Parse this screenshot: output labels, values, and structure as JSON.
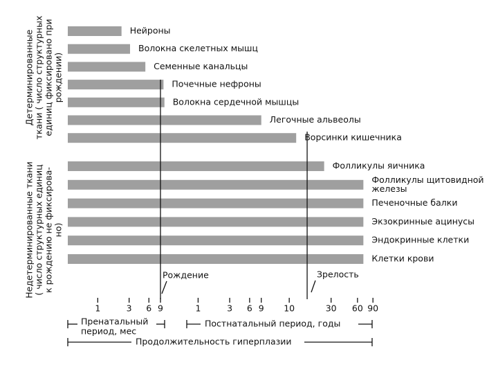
{
  "chart_data": {
    "type": "bar",
    "orientation": "horizontal",
    "log_x": true,
    "color": "#8e8e8e",
    "groups": [
      {
        "label": [
          "Детерминированные",
          "ткани ( число структурных",
          "единиц фиксировано при",
          "рождении)"
        ]
      },
      {
        "label": [
          "Недетерминированные ткани",
          "( число структурных единиц",
          "к рождению не фиксирова-",
          "но)"
        ]
      }
    ],
    "x_segments": [
      {
        "xlim": [
          0.35,
          9
        ],
        "xticks": [
          1,
          3,
          6,
          9
        ]
      },
      {
        "xlim": [
          0.27,
          9.5
        ],
        "xticks": [
          1,
          3,
          6,
          9
        ]
      },
      {
        "xlim": [
          5,
          100
        ],
        "xticks": [
          10,
          30,
          60,
          90
        ]
      }
    ],
    "bars": [
      {
        "label": [
          "Нейроны"
        ],
        "group": 0,
        "segment": 0,
        "value": 2.3
      },
      {
        "label": [
          "Волокна скелетных мышц"
        ],
        "group": 0,
        "segment": 0,
        "value": 3.1
      },
      {
        "label": [
          "Семенные канальцы"
        ],
        "group": 0,
        "segment": 0,
        "value": 5.3
      },
      {
        "label": [
          "Почечные нефроны"
        ],
        "group": 0,
        "segment": 1,
        "value": 0.3
      },
      {
        "label": [
          "Волокна сердечной мышцы"
        ],
        "group": 0,
        "segment": 1,
        "value": 0.31
      },
      {
        "label": [
          "Легочные альвеолы"
        ],
        "group": 0,
        "segment": 1,
        "value": 9
      },
      {
        "label": [
          "Ворсинки кишечника"
        ],
        "group": 0,
        "segment": 2,
        "value": 12
      },
      {
        "label": [
          "Фолликулы яичника"
        ],
        "group": 1,
        "segment": 2,
        "value": 25
      },
      {
        "label": [
          "Фолликулы щитовидной",
          "железы"
        ],
        "group": 1,
        "segment": 2,
        "value": 70
      },
      {
        "label": [
          "Печеночные балки"
        ],
        "group": 1,
        "segment": 2,
        "value": 70
      },
      {
        "label": [
          "Экзокринные ацинусы"
        ],
        "group": 1,
        "segment": 2,
        "value": 70
      },
      {
        "label": [
          "Эндокринные клетки"
        ],
        "group": 1,
        "segment": 2,
        "value": 70
      },
      {
        "label": [
          "Клетки крови"
        ],
        "group": 1,
        "segment": 2,
        "value": 70
      }
    ],
    "markers": [
      {
        "label": "Рождение",
        "segment": 1,
        "value": 0.27
      },
      {
        "label": "Зрелость",
        "segment": 2,
        "value": 16
      }
    ],
    "axis_labels": {
      "prenatal": [
        "Пренатальный",
        "период, мес"
      ],
      "postnatal": "Постнатальный период, годы",
      "hyperplasia": "Продолжительность гиперплазии"
    }
  }
}
